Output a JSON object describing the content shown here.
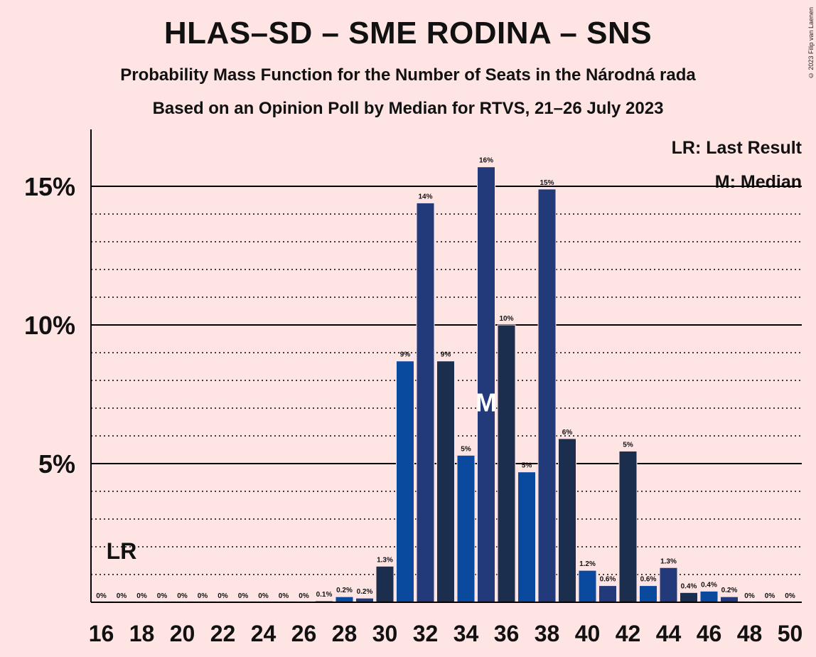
{
  "title": "HLAS–SD – SME RODINA – SNS",
  "subtitle1": "Probability Mass Function for the Number of Seats in the Národná rada",
  "subtitle2": "Based on an Opinion Poll by Median for RTVS, 21–26 July 2023",
  "copyright": "© 2023 Filip van Laenen",
  "legend": {
    "last_result": "LR: Last Result",
    "median": "M: Median"
  },
  "chart_data": {
    "type": "bar",
    "x": [
      16,
      17,
      18,
      19,
      20,
      21,
      22,
      23,
      24,
      25,
      26,
      27,
      28,
      29,
      30,
      31,
      32,
      33,
      34,
      35,
      36,
      37,
      38,
      39,
      40,
      41,
      42,
      43,
      44,
      45,
      46,
      47,
      48,
      49,
      50
    ],
    "values": [
      0,
      0,
      0,
      0,
      0,
      0,
      0,
      0,
      0,
      0,
      0,
      0.05,
      0.2,
      0.15,
      1.3,
      8.7,
      14.4,
      8.7,
      5.3,
      15.7,
      10.0,
      4.7,
      14.9,
      5.9,
      1.15,
      0.6,
      5.45,
      0.6,
      1.25,
      0.35,
      0.4,
      0.2,
      0,
      0,
      0
    ],
    "data_labels": [
      "0%",
      "0%",
      "0%",
      "0%",
      "0%",
      "0%",
      "0%",
      "0%",
      "0%",
      "0%",
      "0%",
      "0.1%",
      "0.2%",
      "0.2%",
      "1.3%",
      "9%",
      "14%",
      "9%",
      "5%",
      "16%",
      "10%",
      "5%",
      "15%",
      "6%",
      "1.2%",
      "0.6%",
      "5%",
      "0.6%",
      "1.3%",
      "0.4%",
      "0.4%",
      "0.2%",
      "0%",
      "0%",
      "0%"
    ],
    "x_ticks": [
      16,
      18,
      20,
      22,
      24,
      26,
      28,
      30,
      32,
      34,
      36,
      38,
      40,
      42,
      44,
      46,
      48,
      50
    ],
    "y_ticks": [
      5,
      10,
      15
    ],
    "y_tick_labels": [
      "5%",
      "10%",
      "15%"
    ],
    "ylim": [
      0,
      17
    ],
    "xlim": [
      16,
      50
    ],
    "last_result_seat": 17,
    "last_result_label": "LR",
    "median_seat": 35,
    "median_label": "M",
    "colors": {
      "primary": "#0a4a9e",
      "secondary": "#233a7a",
      "tertiary": "#1c2e4e"
    },
    "bar_color_cycle": [
      "primary",
      "secondary",
      "tertiary"
    ],
    "grid": "solid lines at major ticks, dotted lines at every 1%"
  }
}
